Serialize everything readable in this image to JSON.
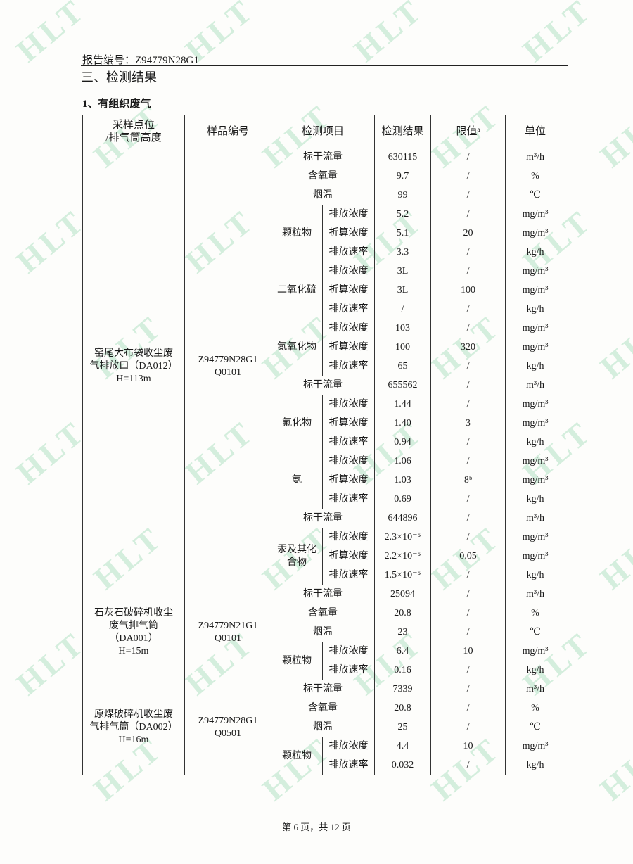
{
  "header": {
    "report_no": "报告编号：Z94779N28G1",
    "section_title": "三、检测结果",
    "subsection_title": "1、有组织废气"
  },
  "table": {
    "columns": [
      "采样点位\n/排气筒高度",
      "样品编号",
      "检测项目",
      "检测结果",
      "限值ᵃ",
      "单位"
    ],
    "groups": [
      {
        "location": "窑尾大布袋收尘废\n气排放口（DA012）\nH=113m",
        "sample_id": "Z94779N28G1\nQ0101",
        "items": [
          {
            "item": "标干流量",
            "result": "630115",
            "limit": "/",
            "unit": "m³/h"
          },
          {
            "item": "含氧量",
            "result": "9.7",
            "limit": "/",
            "unit": "%"
          },
          {
            "item": "烟温",
            "result": "99",
            "limit": "/",
            "unit": "℃"
          },
          {
            "item": "颗粒物",
            "sub": [
              {
                "item": "排放浓度",
                "result": "5.2",
                "limit": "/",
                "unit": "mg/m³"
              },
              {
                "item": "折算浓度",
                "result": "5.1",
                "limit": "20",
                "unit": "mg/m³"
              },
              {
                "item": "排放速率",
                "result": "3.3",
                "limit": "/",
                "unit": "kg/h"
              }
            ]
          },
          {
            "item": "二氧化硫",
            "sub": [
              {
                "item": "排放浓度",
                "result": "3L",
                "limit": "/",
                "unit": "mg/m³"
              },
              {
                "item": "折算浓度",
                "result": "3L",
                "limit": "100",
                "unit": "mg/m³"
              },
              {
                "item": "排放速率",
                "result": "/",
                "limit": "/",
                "unit": "kg/h"
              }
            ]
          },
          {
            "item": "氮氧化物",
            "sub": [
              {
                "item": "排放浓度",
                "result": "103",
                "limit": "/",
                "unit": "mg/m³"
              },
              {
                "item": "折算浓度",
                "result": "100",
                "limit": "320",
                "unit": "mg/m³"
              },
              {
                "item": "排放速率",
                "result": "65",
                "limit": "/",
                "unit": "kg/h"
              }
            ]
          },
          {
            "item": "标干流量",
            "result": "655562",
            "limit": "/",
            "unit": "m³/h"
          },
          {
            "item": "氟化物",
            "sub": [
              {
                "item": "排放浓度",
                "result": "1.44",
                "limit": "/",
                "unit": "mg/m³"
              },
              {
                "item": "折算浓度",
                "result": "1.40",
                "limit": "3",
                "unit": "mg/m³"
              },
              {
                "item": "排放速率",
                "result": "0.94",
                "limit": "/",
                "unit": "kg/h"
              }
            ]
          },
          {
            "item": "氨",
            "sub": [
              {
                "item": "排放浓度",
                "result": "1.06",
                "limit": "/",
                "unit": "mg/m³"
              },
              {
                "item": "折算浓度",
                "result": "1.03",
                "limit": "8ᵇ",
                "unit": "mg/m³"
              },
              {
                "item": "排放速率",
                "result": "0.69",
                "limit": "/",
                "unit": "kg/h"
              }
            ]
          },
          {
            "item": "标干流量",
            "result": "644896",
            "limit": "/",
            "unit": "m³/h"
          },
          {
            "item": "汞及其化\n合物",
            "sub": [
              {
                "item": "排放浓度",
                "result": "2.3×10⁻⁵",
                "limit": "/",
                "unit": "mg/m³"
              },
              {
                "item": "折算浓度",
                "result": "2.2×10⁻⁵",
                "limit": "0.05",
                "unit": "mg/m³"
              },
              {
                "item": "排放速率",
                "result": "1.5×10⁻⁵",
                "limit": "/",
                "unit": "kg/h"
              }
            ]
          }
        ]
      },
      {
        "location": "石灰石破碎机收尘\n废气排气筒\n（DA001）\nH=15m",
        "sample_id": "Z94779N21G1\nQ0101",
        "items": [
          {
            "item": "标干流量",
            "result": "25094",
            "limit": "/",
            "unit": "m³/h"
          },
          {
            "item": "含氧量",
            "result": "20.8",
            "limit": "/",
            "unit": "%"
          },
          {
            "item": "烟温",
            "result": "23",
            "limit": "/",
            "unit": "℃"
          },
          {
            "item": "颗粒物",
            "sub": [
              {
                "item": "排放浓度",
                "result": "6.4",
                "limit": "10",
                "unit": "mg/m³"
              },
              {
                "item": "排放速率",
                "result": "0.16",
                "limit": "/",
                "unit": "kg/h"
              }
            ]
          }
        ]
      },
      {
        "location": "原煤破碎机收尘废\n气排气筒（DA002）\nH=16m",
        "sample_id": "Z94779N28G1\nQ0501",
        "items": [
          {
            "item": "标干流量",
            "result": "7339",
            "limit": "/",
            "unit": "m³/h"
          },
          {
            "item": "含氧量",
            "result": "20.8",
            "limit": "/",
            "unit": "%"
          },
          {
            "item": "烟温",
            "result": "25",
            "limit": "/",
            "unit": "℃"
          },
          {
            "item": "颗粒物",
            "sub": [
              {
                "item": "排放浓度",
                "result": "4.4",
                "limit": "10",
                "unit": "mg/m³"
              },
              {
                "item": "排放速率",
                "result": "0.032",
                "limit": "/",
                "unit": "kg/h"
              }
            ]
          }
        ]
      }
    ]
  },
  "footer": {
    "page": "第 6 页，共 12 页"
  },
  "watermark": {
    "text": "HLT",
    "color": "#d4eedd"
  }
}
